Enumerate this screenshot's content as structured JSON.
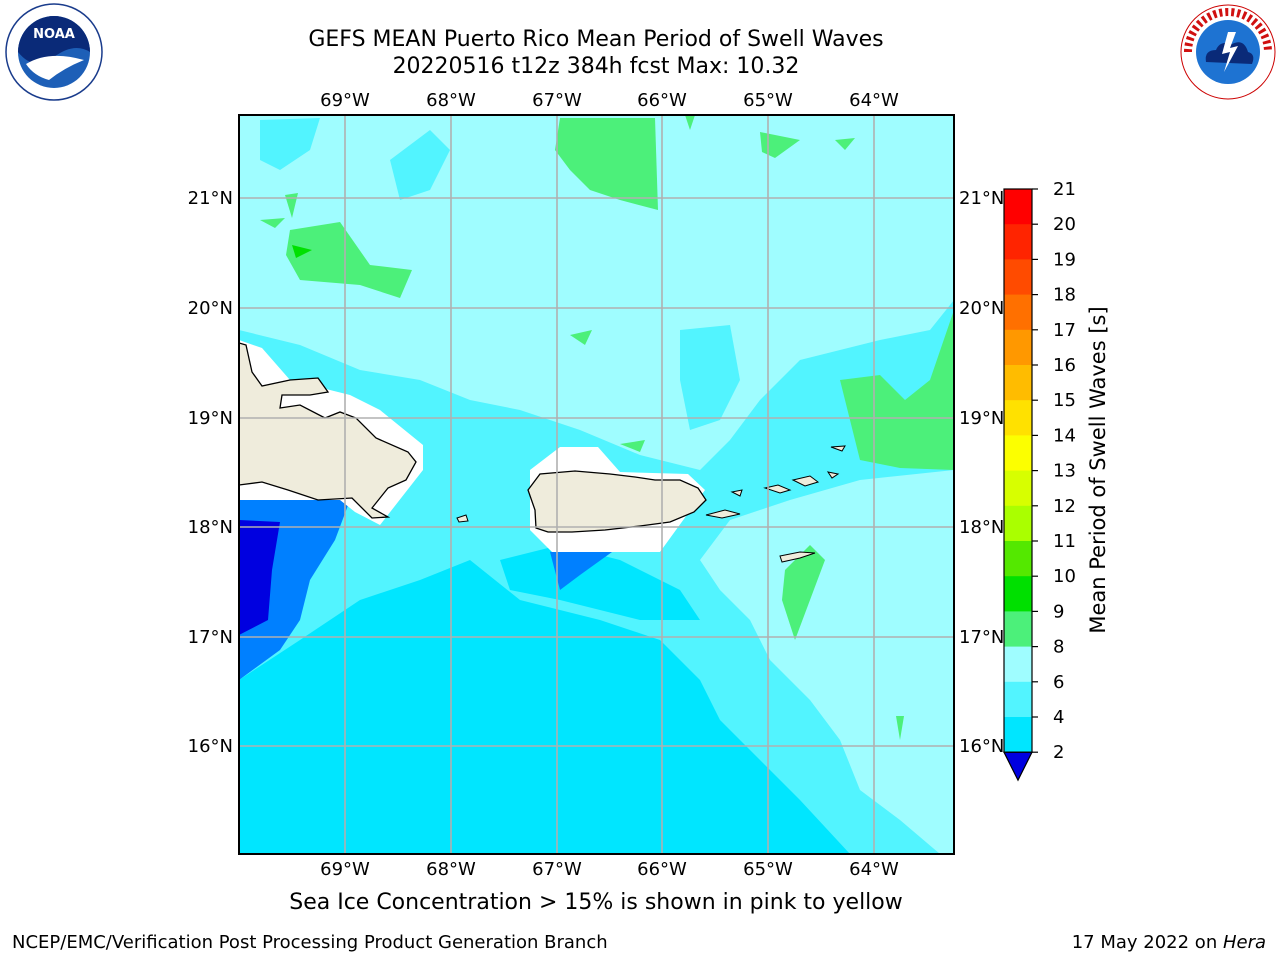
{
  "title": {
    "line1": "GEFS MEAN Puerto Rico Mean Period of Swell Waves",
    "line2": "20220516 t12z 384h fcst   Max: 10.32"
  },
  "map": {
    "lon_labels": [
      "69°W",
      "68°W",
      "67°W",
      "66°W",
      "65°W",
      "64°W"
    ],
    "lat_labels": [
      "21°N",
      "20°N",
      "19°N",
      "18°N",
      "17°N",
      "16°N"
    ]
  },
  "colorbar": {
    "label": "Mean Period of Swell Waves [s]",
    "ticks": [
      "21",
      "20",
      "19",
      "18",
      "17",
      "16",
      "15",
      "14",
      "13",
      "12",
      "11",
      "10",
      "9",
      "8",
      "6",
      "4",
      "2"
    ],
    "colors": [
      "#ff0000",
      "#ff2400",
      "#ff4b00",
      "#ff7000",
      "#ff9800",
      "#ffbc00",
      "#ffe100",
      "#fcff00",
      "#d7ff00",
      "#aaff00",
      "#54e800",
      "#00e000",
      "#4cf07a",
      "#9ffdff",
      "#52f4ff",
      "#00e6ff",
      "#0080ff"
    ],
    "under_color": "#0000e0"
  },
  "note": "Sea Ice Concentration > 15% is shown in pink to yellow",
  "footer": {
    "left": "NCEP/EMC/Verification Post Processing Product Generation Branch",
    "right_date": "17 May 2022 on ",
    "right_machine": "Hera"
  },
  "logos": {
    "left": "noaa-logo",
    "right": "nws-logo"
  }
}
